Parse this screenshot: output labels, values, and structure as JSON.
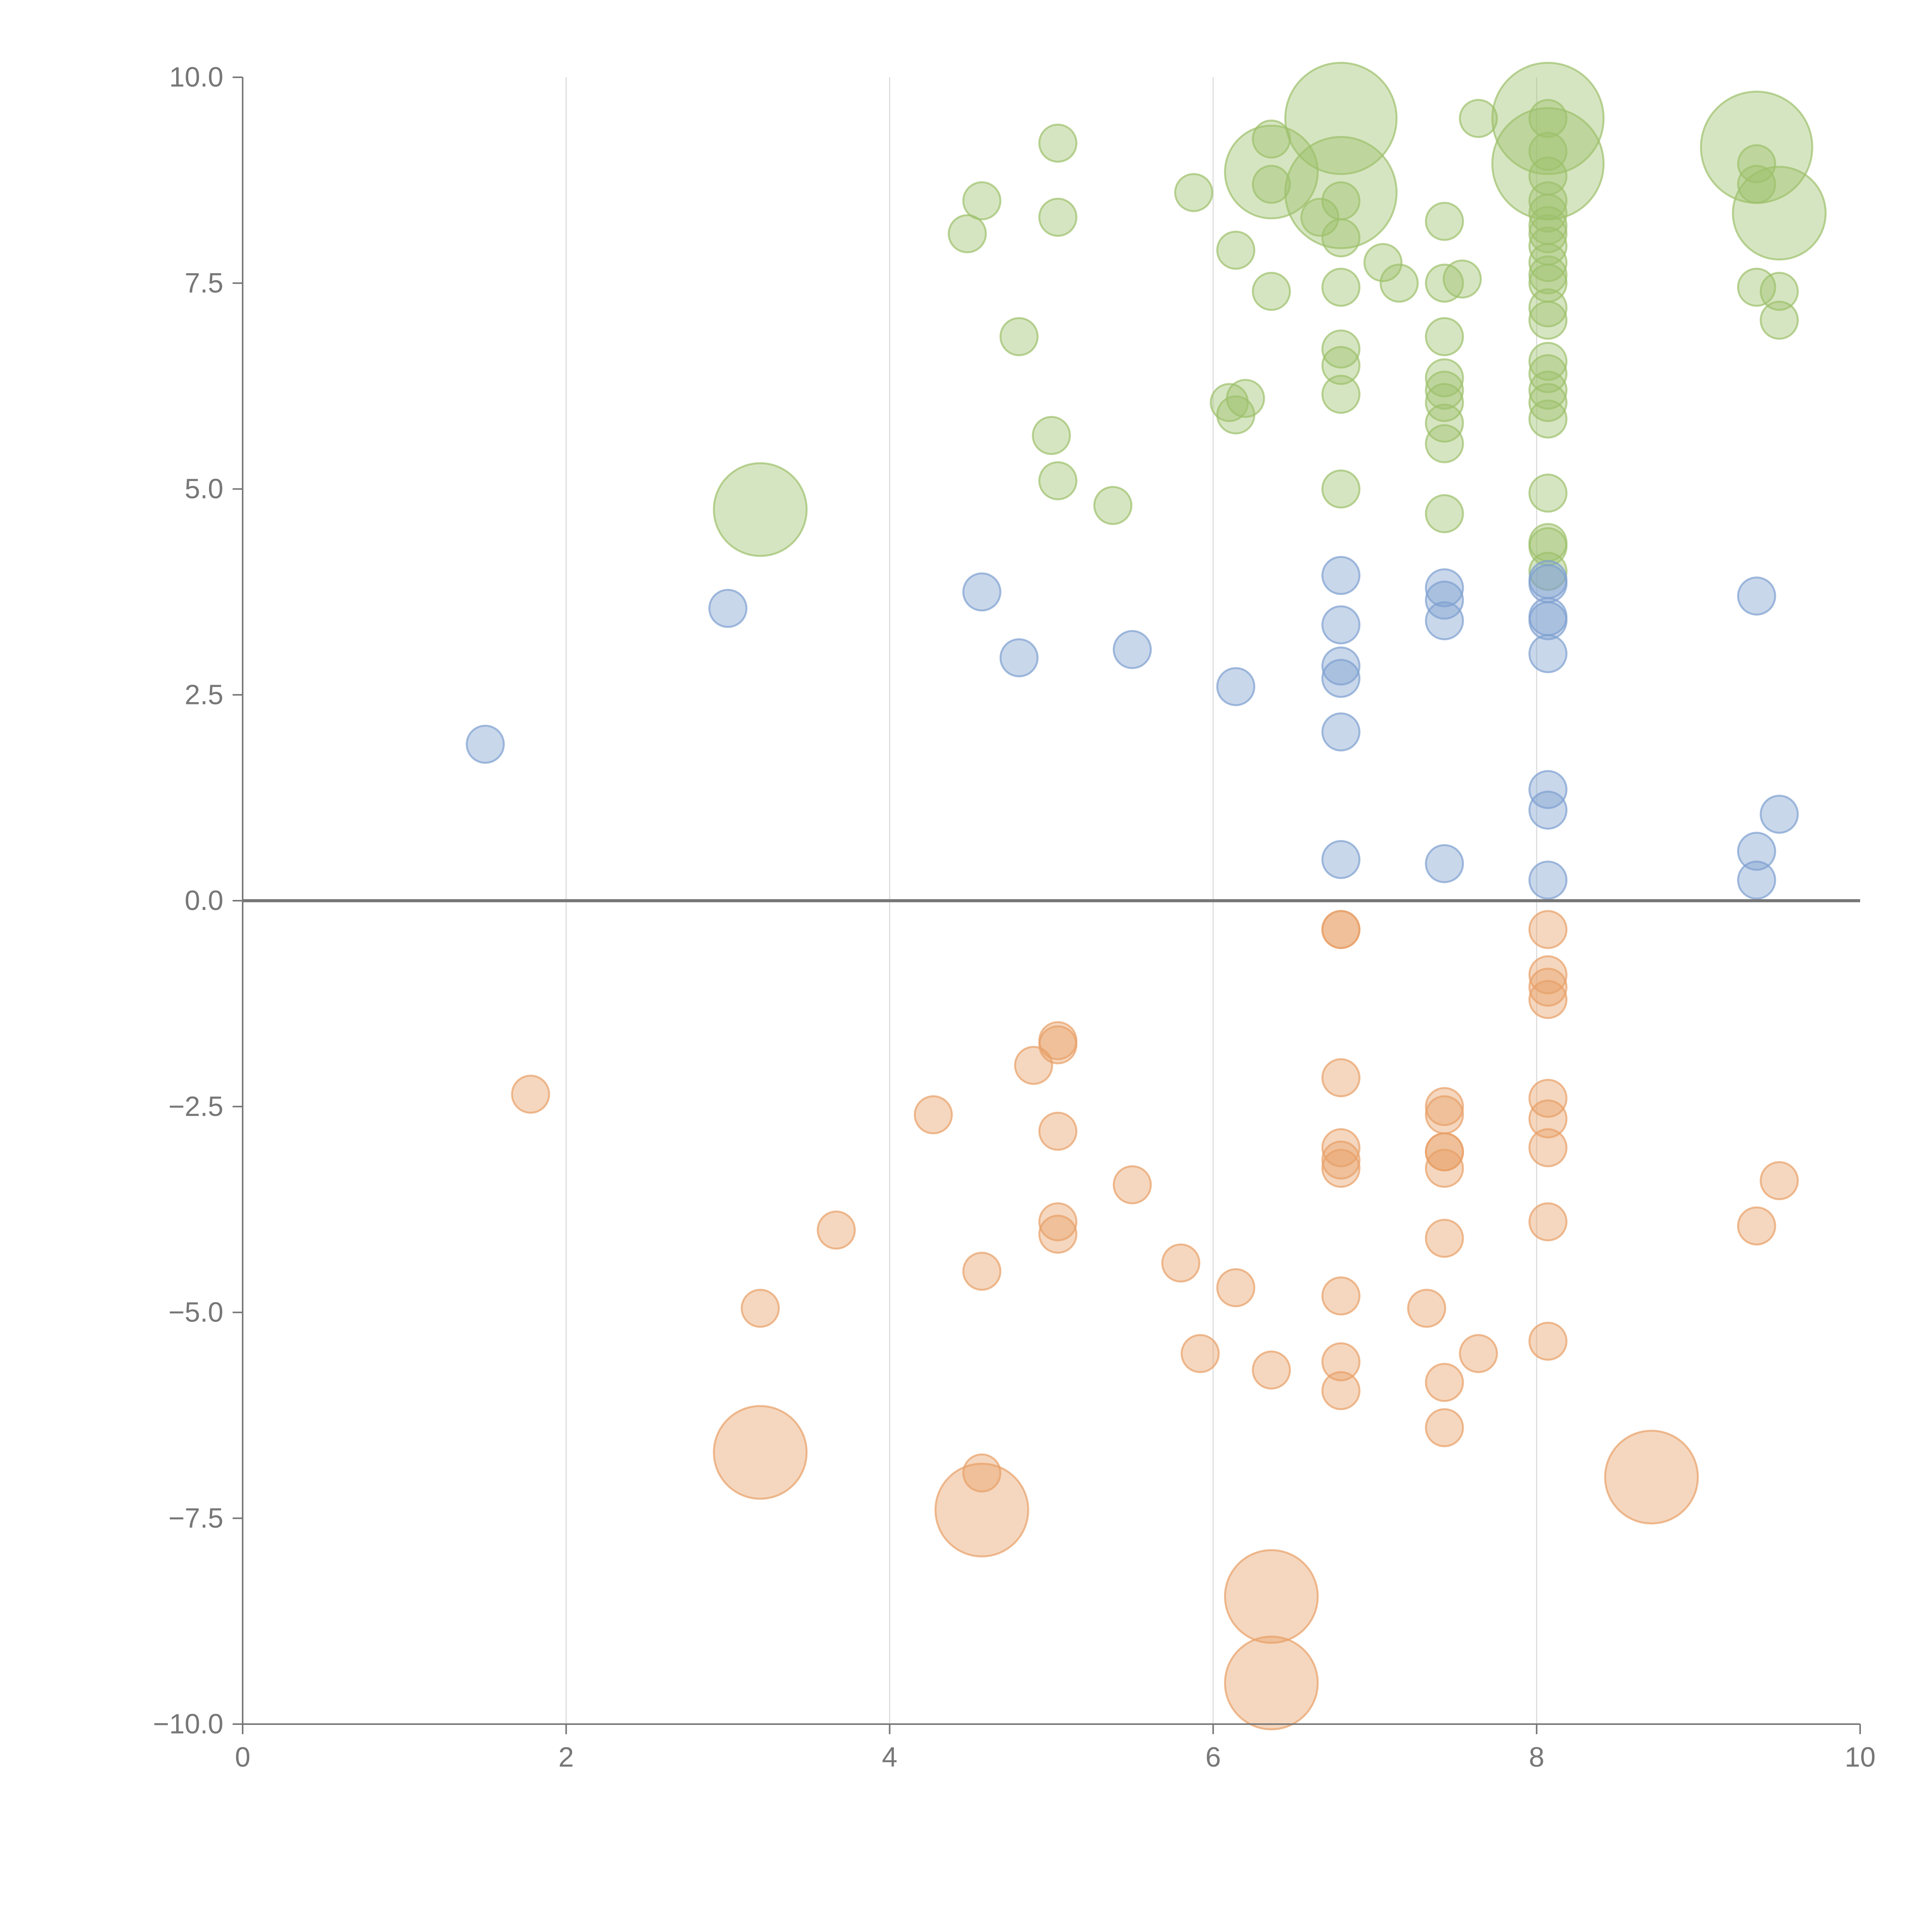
{
  "chart_data": {
    "type": "scatter",
    "subtype": "bubble",
    "title": "",
    "xlabel": "",
    "ylabel": "",
    "xlim": [
      0,
      10
    ],
    "ylim": [
      -10,
      10
    ],
    "x_ticks": [
      0,
      2,
      4,
      6,
      8,
      10
    ],
    "x_tick_labels": [
      "0",
      "2",
      "4",
      "6",
      "8",
      "10"
    ],
    "y_ticks": [
      10,
      7.5,
      5,
      2.5,
      0,
      -2.5,
      -5,
      -7.5,
      -10
    ],
    "y_tick_labels": [
      "10.0",
      "7.5",
      "5.0",
      "2.5",
      "0.0",
      "−2.5",
      "−5.0",
      "−7.5",
      "−10.0"
    ],
    "grid": "vertical",
    "zero_line": true,
    "legend": "none",
    "series": [
      {
        "name": "positive-high",
        "color": "#9dc06b",
        "points": [
          {
            "x": 6.79,
            "y": 9.5,
            "r": 3
          },
          {
            "x": 8.07,
            "y": 9.5,
            "r": 3
          },
          {
            "x": 9.36,
            "y": 9.15,
            "r": 3
          },
          {
            "x": 8.07,
            "y": 8.95,
            "r": 3
          },
          {
            "x": 6.36,
            "y": 8.85,
            "r": 2.5
          },
          {
            "x": 6.79,
            "y": 8.6,
            "r": 3
          },
          {
            "x": 9.5,
            "y": 8.35,
            "r": 2.5
          },
          {
            "x": 3.2,
            "y": 4.75,
            "r": 2.5
          },
          {
            "x": 5.04,
            "y": 9.2,
            "r": 1
          },
          {
            "x": 6.36,
            "y": 9.25,
            "r": 1
          },
          {
            "x": 7.64,
            "y": 9.5,
            "r": 1
          },
          {
            "x": 8.07,
            "y": 9.5,
            "r": 1
          },
          {
            "x": 8.07,
            "y": 9.1,
            "r": 1
          },
          {
            "x": 9.36,
            "y": 8.95,
            "r": 1
          },
          {
            "x": 9.36,
            "y": 8.7,
            "r": 1
          },
          {
            "x": 8.07,
            "y": 8.8,
            "r": 1
          },
          {
            "x": 6.36,
            "y": 8.7,
            "r": 1
          },
          {
            "x": 5.88,
            "y": 8.6,
            "r": 1
          },
          {
            "x": 4.57,
            "y": 8.5,
            "r": 1
          },
          {
            "x": 6.79,
            "y": 8.5,
            "r": 1
          },
          {
            "x": 8.07,
            "y": 8.5,
            "r": 1
          },
          {
            "x": 8.07,
            "y": 8.35,
            "r": 1
          },
          {
            "x": 8.07,
            "y": 8.2,
            "r": 1
          },
          {
            "x": 6.66,
            "y": 8.3,
            "r": 1
          },
          {
            "x": 5.04,
            "y": 8.3,
            "r": 1
          },
          {
            "x": 7.43,
            "y": 8.25,
            "r": 1
          },
          {
            "x": 8.07,
            "y": 8.1,
            "r": 1
          },
          {
            "x": 4.48,
            "y": 8.1,
            "r": 1
          },
          {
            "x": 6.79,
            "y": 8.05,
            "r": 1
          },
          {
            "x": 8.07,
            "y": 7.95,
            "r": 1
          },
          {
            "x": 6.14,
            "y": 7.9,
            "r": 1
          },
          {
            "x": 7.05,
            "y": 7.75,
            "r": 1
          },
          {
            "x": 8.07,
            "y": 7.75,
            "r": 1
          },
          {
            "x": 8.07,
            "y": 7.6,
            "r": 1
          },
          {
            "x": 7.15,
            "y": 7.5,
            "r": 1
          },
          {
            "x": 7.43,
            "y": 7.5,
            "r": 1
          },
          {
            "x": 7.54,
            "y": 7.55,
            "r": 1
          },
          {
            "x": 8.07,
            "y": 7.5,
            "r": 1
          },
          {
            "x": 9.36,
            "y": 7.45,
            "r": 1
          },
          {
            "x": 6.79,
            "y": 7.45,
            "r": 1
          },
          {
            "x": 6.36,
            "y": 7.4,
            "r": 1
          },
          {
            "x": 9.5,
            "y": 7.4,
            "r": 1
          },
          {
            "x": 8.07,
            "y": 7.2,
            "r": 1
          },
          {
            "x": 8.07,
            "y": 7.05,
            "r": 1
          },
          {
            "x": 9.5,
            "y": 7.05,
            "r": 1
          },
          {
            "x": 7.43,
            "y": 6.85,
            "r": 1
          },
          {
            "x": 4.8,
            "y": 6.85,
            "r": 1
          },
          {
            "x": 6.79,
            "y": 6.7,
            "r": 1
          },
          {
            "x": 6.79,
            "y": 6.5,
            "r": 1
          },
          {
            "x": 8.07,
            "y": 6.55,
            "r": 1
          },
          {
            "x": 8.07,
            "y": 6.4,
            "r": 1
          },
          {
            "x": 7.43,
            "y": 6.35,
            "r": 1
          },
          {
            "x": 7.43,
            "y": 6.2,
            "r": 1
          },
          {
            "x": 8.07,
            "y": 6.2,
            "r": 1
          },
          {
            "x": 6.79,
            "y": 6.15,
            "r": 1
          },
          {
            "x": 8.07,
            "y": 6.05,
            "r": 1
          },
          {
            "x": 6.2,
            "y": 6.1,
            "r": 1
          },
          {
            "x": 7.43,
            "y": 6.05,
            "r": 1
          },
          {
            "x": 6.1,
            "y": 6.05,
            "r": 1
          },
          {
            "x": 8.07,
            "y": 5.85,
            "r": 1
          },
          {
            "x": 6.14,
            "y": 5.9,
            "r": 1
          },
          {
            "x": 7.43,
            "y": 5.8,
            "r": 1
          },
          {
            "x": 5.0,
            "y": 5.65,
            "r": 1
          },
          {
            "x": 7.43,
            "y": 5.55,
            "r": 1
          },
          {
            "x": 5.04,
            "y": 5.1,
            "r": 1
          },
          {
            "x": 6.79,
            "y": 5.0,
            "r": 1
          },
          {
            "x": 8.07,
            "y": 4.95,
            "r": 1
          },
          {
            "x": 5.38,
            "y": 4.8,
            "r": 1
          },
          {
            "x": 7.43,
            "y": 4.7,
            "r": 1
          },
          {
            "x": 8.07,
            "y": 4.35,
            "r": 1
          },
          {
            "x": 8.07,
            "y": 4.3,
            "r": 1
          },
          {
            "x": 8.07,
            "y": 4.0,
            "r": 1
          }
        ]
      },
      {
        "name": "positive-low",
        "color": "#7e9fd0",
        "points": [
          {
            "x": 6.79,
            "y": 3.95,
            "r": 1
          },
          {
            "x": 8.07,
            "y": 3.9,
            "r": 1
          },
          {
            "x": 7.43,
            "y": 3.8,
            "r": 1
          },
          {
            "x": 8.07,
            "y": 3.85,
            "r": 1
          },
          {
            "x": 4.57,
            "y": 3.75,
            "r": 1
          },
          {
            "x": 9.36,
            "y": 3.7,
            "r": 1
          },
          {
            "x": 7.43,
            "y": 3.65,
            "r": 1
          },
          {
            "x": 3.0,
            "y": 3.55,
            "r": 1
          },
          {
            "x": 8.07,
            "y": 3.45,
            "r": 1
          },
          {
            "x": 7.43,
            "y": 3.4,
            "r": 1
          },
          {
            "x": 8.07,
            "y": 3.4,
            "r": 1
          },
          {
            "x": 6.79,
            "y": 3.35,
            "r": 1
          },
          {
            "x": 5.5,
            "y": 3.05,
            "r": 1
          },
          {
            "x": 8.07,
            "y": 3.0,
            "r": 1
          },
          {
            "x": 4.8,
            "y": 2.95,
            "r": 1
          },
          {
            "x": 6.79,
            "y": 2.85,
            "r": 1
          },
          {
            "x": 6.79,
            "y": 2.7,
            "r": 1
          },
          {
            "x": 6.14,
            "y": 2.6,
            "r": 1
          },
          {
            "x": 6.79,
            "y": 2.05,
            "r": 1
          },
          {
            "x": 1.5,
            "y": 1.9,
            "r": 1
          },
          {
            "x": 8.07,
            "y": 1.35,
            "r": 1
          },
          {
            "x": 8.07,
            "y": 1.1,
            "r": 1
          },
          {
            "x": 9.5,
            "y": 1.05,
            "r": 1
          },
          {
            "x": 9.36,
            "y": 0.6,
            "r": 1
          },
          {
            "x": 6.79,
            "y": 0.5,
            "r": 1
          },
          {
            "x": 7.43,
            "y": 0.45,
            "r": 1
          },
          {
            "x": 9.36,
            "y": 0.25,
            "r": 1
          },
          {
            "x": 8.07,
            "y": 0.25,
            "r": 1
          }
        ]
      },
      {
        "name": "negative",
        "color": "#e8a066",
        "points": [
          {
            "x": 6.79,
            "y": -0.35,
            "r": 1
          },
          {
            "x": 6.79,
            "y": -0.35,
            "r": 1
          },
          {
            "x": 8.07,
            "y": -0.35,
            "r": 1
          },
          {
            "x": 8.07,
            "y": -0.9,
            "r": 1
          },
          {
            "x": 8.07,
            "y": -1.05,
            "r": 1
          },
          {
            "x": 8.07,
            "y": -1.2,
            "r": 1
          },
          {
            "x": 5.04,
            "y": -1.7,
            "r": 1
          },
          {
            "x": 5.04,
            "y": -1.75,
            "r": 1
          },
          {
            "x": 4.89,
            "y": -2.0,
            "r": 1
          },
          {
            "x": 6.79,
            "y": -2.15,
            "r": 1
          },
          {
            "x": 1.78,
            "y": -2.35,
            "r": 1
          },
          {
            "x": 8.07,
            "y": -2.4,
            "r": 1
          },
          {
            "x": 7.43,
            "y": -2.5,
            "r": 1
          },
          {
            "x": 7.43,
            "y": -2.6,
            "r": 1
          },
          {
            "x": 4.27,
            "y": -2.6,
            "r": 1
          },
          {
            "x": 8.07,
            "y": -2.65,
            "r": 1
          },
          {
            "x": 5.04,
            "y": -2.8,
            "r": 1
          },
          {
            "x": 6.79,
            "y": -3.0,
            "r": 1
          },
          {
            "x": 8.07,
            "y": -3.0,
            "r": 1
          },
          {
            "x": 7.43,
            "y": -3.05,
            "r": 1
          },
          {
            "x": 7.43,
            "y": -3.05,
            "r": 1
          },
          {
            "x": 6.79,
            "y": -3.15,
            "r": 1
          },
          {
            "x": 7.43,
            "y": -3.25,
            "r": 1
          },
          {
            "x": 6.79,
            "y": -3.25,
            "r": 1
          },
          {
            "x": 9.5,
            "y": -3.4,
            "r": 1
          },
          {
            "x": 5.5,
            "y": -3.45,
            "r": 1
          },
          {
            "x": 8.07,
            "y": -3.9,
            "r": 1
          },
          {
            "x": 5.04,
            "y": -3.9,
            "r": 1
          },
          {
            "x": 9.36,
            "y": -3.95,
            "r": 1
          },
          {
            "x": 3.67,
            "y": -4.0,
            "r": 1
          },
          {
            "x": 5.04,
            "y": -4.05,
            "r": 1
          },
          {
            "x": 7.43,
            "y": -4.1,
            "r": 1
          },
          {
            "x": 5.8,
            "y": -4.4,
            "r": 1
          },
          {
            "x": 4.57,
            "y": -4.5,
            "r": 1
          },
          {
            "x": 6.14,
            "y": -4.7,
            "r": 1
          },
          {
            "x": 6.79,
            "y": -4.8,
            "r": 1
          },
          {
            "x": 3.2,
            "y": -4.95,
            "r": 1
          },
          {
            "x": 7.32,
            "y": -4.95,
            "r": 1
          },
          {
            "x": 8.07,
            "y": -5.35,
            "r": 1
          },
          {
            "x": 7.64,
            "y": -5.5,
            "r": 1
          },
          {
            "x": 5.92,
            "y": -5.5,
            "r": 1
          },
          {
            "x": 6.79,
            "y": -5.6,
            "r": 1
          },
          {
            "x": 6.36,
            "y": -5.7,
            "r": 1
          },
          {
            "x": 7.43,
            "y": -5.85,
            "r": 1
          },
          {
            "x": 6.79,
            "y": -5.95,
            "r": 1
          },
          {
            "x": 7.43,
            "y": -6.4,
            "r": 1
          },
          {
            "x": 4.57,
            "y": -6.95,
            "r": 1
          },
          {
            "x": 3.2,
            "y": -6.7,
            "r": 2.5
          },
          {
            "x": 8.71,
            "y": -7.0,
            "r": 2.5
          },
          {
            "x": 4.57,
            "y": -7.4,
            "r": 2.5
          },
          {
            "x": 6.36,
            "y": -8.45,
            "r": 2.5
          },
          {
            "x": 6.36,
            "y": -9.5,
            "r": 2.5
          }
        ]
      }
    ]
  }
}
